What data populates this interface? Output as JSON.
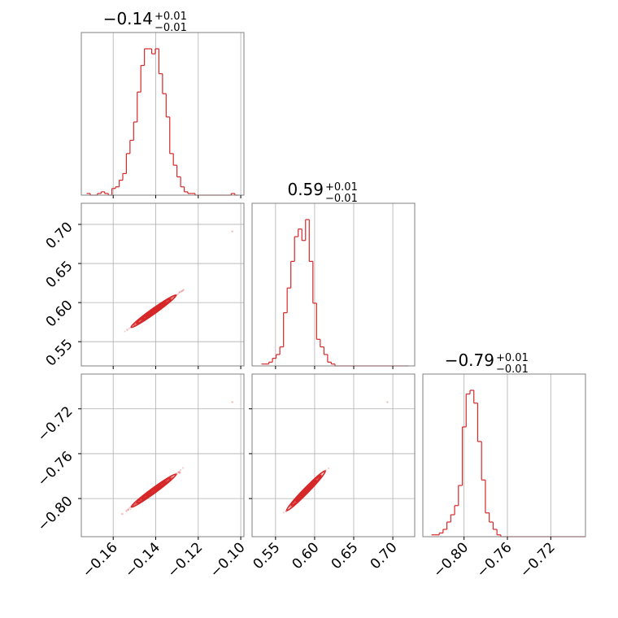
{
  "chart_data": {
    "type": "corner",
    "color": "#d62728",
    "grid": true,
    "parameters": [
      {
        "title": {
          "median": "−0.14",
          "plus": "+0.01",
          "minus": "−0.01"
        },
        "range": [
          -0.175,
          -0.0985
        ],
        "ticks": [
          -0.16,
          -0.14,
          -0.12,
          -0.1
        ],
        "tick_labels": [
          "−0.16",
          "−0.14",
          "−0.12",
          "−0.10"
        ],
        "hist": {
          "start": -0.1725,
          "bin_width": 0.0017,
          "counts": [
            1,
            0,
            0,
            1,
            2,
            1,
            0,
            4,
            5,
            9,
            13,
            25,
            33,
            44,
            62,
            78,
            88,
            88,
            85,
            88,
            73,
            61,
            47,
            25,
            18,
            11,
            5,
            2,
            1,
            1,
            0,
            0,
            0,
            0,
            0,
            0,
            0,
            0,
            0,
            0,
            1,
            0
          ]
        }
      },
      {
        "title": {
          "median": "0.59",
          "plus": "+0.01",
          "minus": "−0.01"
        },
        "range": [
          0.52,
          0.728
        ],
        "ticks": [
          0.55,
          0.6,
          0.65,
          0.7
        ],
        "tick_labels": [
          "0.55",
          "0.60",
          "0.65",
          "0.70"
        ],
        "hist": {
          "start": 0.532,
          "bin_width": 0.0047,
          "counts": [
            1,
            1,
            2,
            4,
            6,
            10,
            28,
            41,
            55,
            68,
            72,
            66,
            77,
            55,
            33,
            14,
            10,
            6,
            2,
            1,
            0,
            0,
            0,
            0,
            0,
            0,
            0,
            0,
            0,
            0,
            0,
            0,
            0,
            0,
            0,
            0,
            0,
            0,
            0,
            0
          ]
        }
      },
      {
        "title": {
          "median": "−0.79",
          "plus": "+0.01",
          "minus": "−0.01"
        },
        "range": [
          -0.838,
          -0.688
        ],
        "ticks": [
          -0.8,
          -0.76,
          -0.72
        ],
        "tick_labels": [
          "−0.80",
          "−0.76",
          "−0.72"
        ],
        "hist": {
          "start": -0.83,
          "bin_width": 0.00355,
          "counts": [
            1,
            1,
            2,
            4,
            8,
            12,
            17,
            28,
            60,
            78,
            80,
            73,
            52,
            31,
            13,
            8,
            4,
            1,
            0,
            0,
            0,
            0,
            0,
            0,
            0,
            0,
            0,
            0,
            0,
            0,
            0,
            0,
            0,
            0,
            0,
            0,
            0,
            0,
            0,
            0
          ]
        }
      }
    ],
    "pairs": [
      {
        "x": 0,
        "y": 1,
        "ylim": [
          0.519,
          0.727
        ],
        "slope": 1.0,
        "y_ticks": [
          0.55,
          0.6,
          0.65,
          0.7
        ],
        "y_tick_labels": [
          "0.55",
          "0.60",
          "0.65",
          "0.70"
        ],
        "outlier": [
          -0.104,
          0.691
        ]
      },
      {
        "x": 0,
        "y": 2,
        "ylim": [
          -0.834,
          -0.689
        ],
        "slope": 0.7,
        "y_ticks": [
          -0.8,
          -0.76,
          -0.72
        ],
        "y_tick_labels": [
          "−0.80",
          "−0.76",
          "−0.72"
        ],
        "outlier": [
          -0.104,
          -0.714
        ]
      },
      {
        "x": 1,
        "y": 2,
        "ylim": [
          -0.834,
          -0.689
        ],
        "slope": 0.7,
        "outlier": [
          0.693,
          -0.714
        ]
      }
    ]
  }
}
